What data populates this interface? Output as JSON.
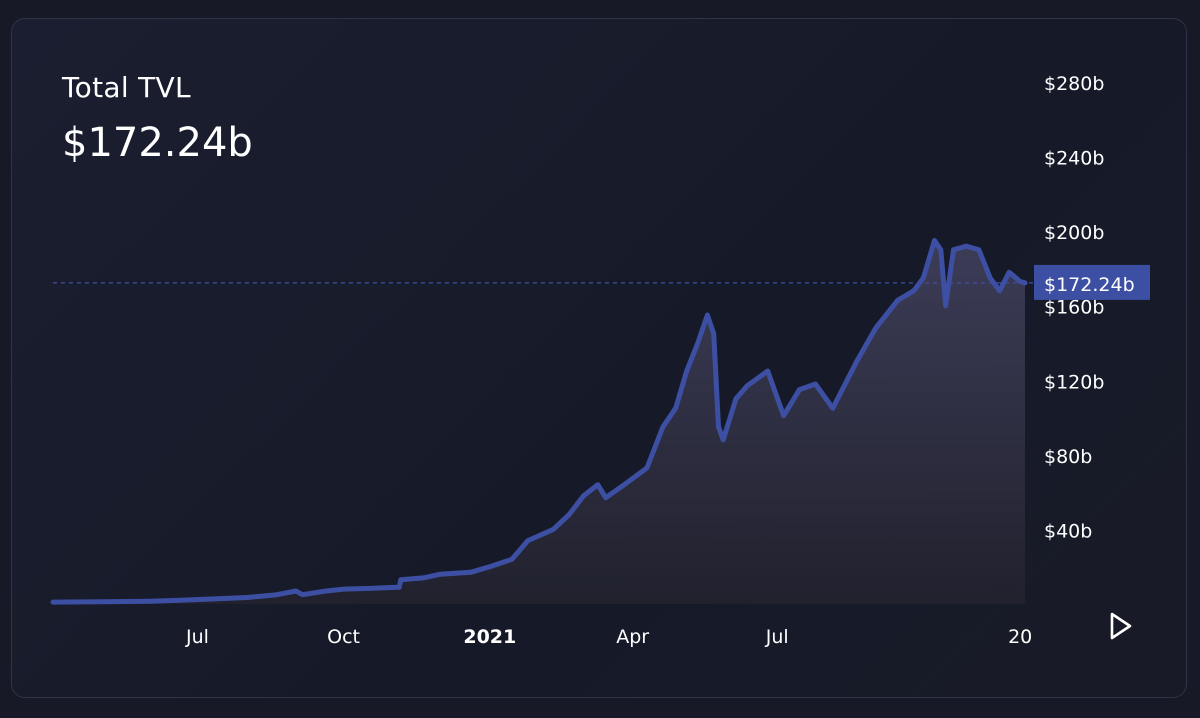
{
  "header": {
    "title": "Total TVL",
    "current_value": "$172.24b"
  },
  "colors": {
    "line": "#3d4fa3",
    "current_tag": "#3d4fa3",
    "text": "#ffffff",
    "area_top": "#3e3e5a",
    "area_bottom": "#22222e"
  },
  "controls": {
    "play_icon": "play-icon"
  },
  "chart_data": {
    "type": "area",
    "title": "Total TVL",
    "xlabel": "",
    "ylabel": "",
    "y_unit": "$b",
    "ylim": [
      0,
      280
    ],
    "y_ticks": [
      40,
      80,
      120,
      160,
      200,
      240,
      280
    ],
    "y_tick_labels": [
      "$40b",
      "$80b",
      "$120b",
      "$160b",
      "$200b",
      "$240b",
      "$280b"
    ],
    "x_range": [
      "2020-04-01",
      "2021-12-04"
    ],
    "x_ticks": [
      "2020-07-01",
      "2020-10-01",
      "2021-01-01",
      "2021-04-01",
      "2021-07-01",
      "2021-12-01"
    ],
    "x_tick_labels": [
      "Jul",
      "Oct",
      "2021",
      "Apr",
      "Jul",
      "20"
    ],
    "x_tick_bold": [
      false,
      false,
      true,
      false,
      false,
      false
    ],
    "grid": false,
    "current_value": 172.24,
    "current_label": "$172.24b",
    "series": [
      {
        "points": [
          [
            "2020-04-01",
            1
          ],
          [
            "2020-05-01",
            1.2
          ],
          [
            "2020-06-01",
            1.5
          ],
          [
            "2020-06-20",
            2
          ],
          [
            "2020-07-10",
            2.7
          ],
          [
            "2020-08-01",
            3.5
          ],
          [
            "2020-08-20",
            5
          ],
          [
            "2020-09-01",
            7
          ],
          [
            "2020-09-05",
            5
          ],
          [
            "2020-09-20",
            7
          ],
          [
            "2020-10-01",
            8
          ],
          [
            "2020-10-20",
            8.5
          ],
          [
            "2020-11-05",
            9
          ],
          [
            "2020-11-06",
            13
          ],
          [
            "2020-11-20",
            14
          ],
          [
            "2020-12-01",
            16
          ],
          [
            "2020-12-20",
            17
          ],
          [
            "2021-01-01",
            20
          ],
          [
            "2021-01-15",
            24
          ],
          [
            "2021-01-25",
            34
          ],
          [
            "2021-02-10",
            40
          ],
          [
            "2021-02-20",
            48
          ],
          [
            "2021-03-01",
            58
          ],
          [
            "2021-03-10",
            64
          ],
          [
            "2021-03-15",
            57
          ],
          [
            "2021-03-25",
            63
          ],
          [
            "2021-04-10",
            73
          ],
          [
            "2021-04-20",
            95
          ],
          [
            "2021-04-28",
            105
          ],
          [
            "2021-05-05",
            125
          ],
          [
            "2021-05-12",
            140
          ],
          [
            "2021-05-18",
            155
          ],
          [
            "2021-05-22",
            145
          ],
          [
            "2021-05-25",
            95
          ],
          [
            "2021-05-28",
            88
          ],
          [
            "2021-06-05",
            110
          ],
          [
            "2021-06-12",
            117
          ],
          [
            "2021-06-25",
            125
          ],
          [
            "2021-07-05",
            101
          ],
          [
            "2021-07-15",
            115
          ],
          [
            "2021-07-25",
            118
          ],
          [
            "2021-08-05",
            105
          ],
          [
            "2021-08-20",
            130
          ],
          [
            "2021-09-01",
            148
          ],
          [
            "2021-09-15",
            163
          ],
          [
            "2021-09-25",
            168
          ],
          [
            "2021-10-01",
            175
          ],
          [
            "2021-10-08",
            195
          ],
          [
            "2021-10-12",
            190
          ],
          [
            "2021-10-15",
            160
          ],
          [
            "2021-10-20",
            190
          ],
          [
            "2021-10-28",
            192
          ],
          [
            "2021-11-05",
            190
          ],
          [
            "2021-11-12",
            175
          ],
          [
            "2021-11-18",
            168
          ],
          [
            "2021-11-24",
            178
          ],
          [
            "2021-12-01",
            173
          ],
          [
            "2021-12-04",
            172.24
          ]
        ]
      }
    ]
  }
}
